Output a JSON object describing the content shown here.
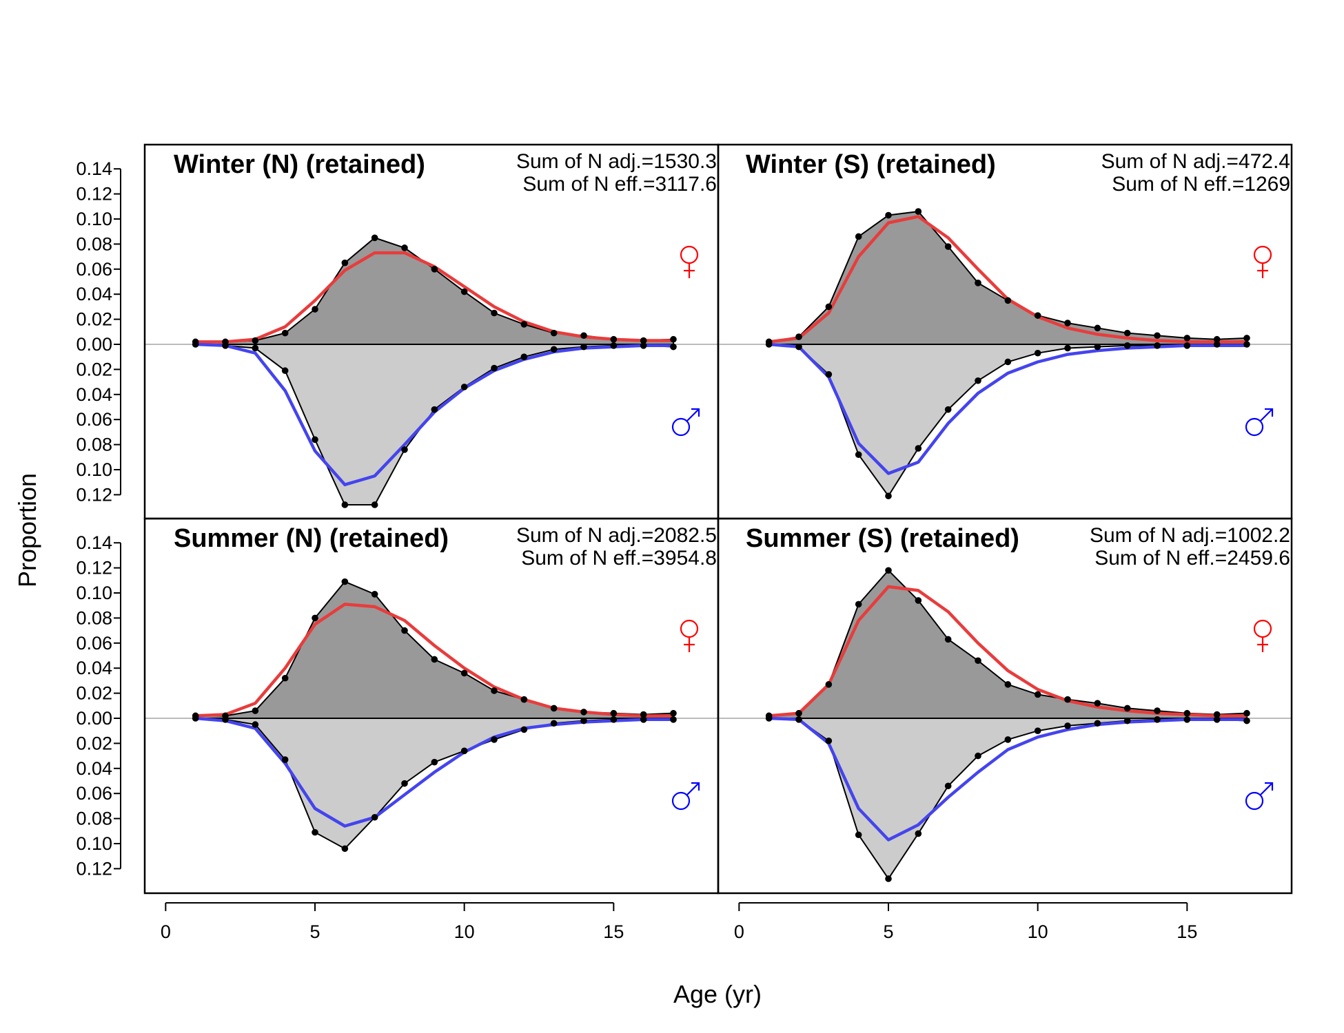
{
  "figure": {
    "xlabel": "Age (yr)",
    "ylabel": "Proportion"
  },
  "colors": {
    "female_obs_fill": "#999999",
    "male_obs_fill": "#cccccc",
    "female_expected": "#e83c3c",
    "male_expected": "#4444ee",
    "female_symbol": "#ff0000",
    "male_symbol": "#0000ff",
    "zero_line": "#bbbbbb"
  },
  "icons": {
    "female": "female-sign-icon",
    "male": "male-sign-icon"
  },
  "chart_data": [
    {
      "type": "area",
      "title": "Winter (N) (retained)",
      "stats": [
        "Sum of N adj.=1530.3",
        "Sum of N eff.=3117.6"
      ],
      "x": [
        1,
        2,
        3,
        4,
        5,
        6,
        7,
        8,
        9,
        10,
        11,
        12,
        13,
        14,
        15,
        16,
        17
      ],
      "x_ticks": [
        0,
        5,
        10,
        15
      ],
      "y_ticks_top": [
        "0.14",
        "0.12",
        "0.10",
        "0.08",
        "0.06",
        "0.04",
        "0.02",
        "0.00"
      ],
      "y_ticks_bottom": [
        "0.02",
        "0.04",
        "0.06",
        "0.08",
        "0.10",
        "0.12"
      ],
      "series": [
        {
          "sex": "female",
          "role": "observed",
          "values": [
            0.002,
            0.002,
            0.003,
            0.009,
            0.028,
            0.065,
            0.085,
            0.077,
            0.06,
            0.042,
            0.025,
            0.016,
            0.009,
            0.007,
            0.004,
            0.003,
            0.004
          ]
        },
        {
          "sex": "female",
          "role": "expected",
          "values": [
            0.002,
            0.002,
            0.004,
            0.014,
            0.035,
            0.059,
            0.073,
            0.073,
            0.062,
            0.046,
            0.03,
            0.018,
            0.01,
            0.006,
            0.004,
            0.003,
            0.003
          ]
        },
        {
          "sex": "male",
          "role": "observed",
          "values": [
            0.0,
            0.001,
            0.003,
            0.021,
            0.076,
            0.128,
            0.128,
            0.084,
            0.052,
            0.034,
            0.019,
            0.01,
            0.004,
            0.002,
            0.001,
            0.001,
            0.002
          ]
        },
        {
          "sex": "male",
          "role": "expected",
          "values": [
            0.0,
            0.001,
            0.007,
            0.037,
            0.085,
            0.112,
            0.105,
            0.08,
            0.054,
            0.035,
            0.021,
            0.012,
            0.006,
            0.003,
            0.002,
            0.001,
            0.001
          ]
        }
      ]
    },
    {
      "type": "area",
      "title": "Winter (S) (retained)",
      "stats": [
        "Sum of N adj.=472.4",
        "Sum of N eff.=1269"
      ],
      "x": [
        1,
        2,
        3,
        4,
        5,
        6,
        7,
        8,
        9,
        10,
        11,
        12,
        13,
        14,
        15,
        16,
        17
      ],
      "x_ticks": [
        0,
        5,
        10,
        15
      ],
      "y_ticks_top": [],
      "y_ticks_bottom": [],
      "series": [
        {
          "sex": "female",
          "role": "observed",
          "values": [
            0.002,
            0.006,
            0.03,
            0.086,
            0.103,
            0.106,
            0.078,
            0.049,
            0.035,
            0.023,
            0.017,
            0.013,
            0.009,
            0.007,
            0.005,
            0.004,
            0.005
          ]
        },
        {
          "sex": "female",
          "role": "expected",
          "values": [
            0.002,
            0.005,
            0.025,
            0.07,
            0.097,
            0.102,
            0.085,
            0.06,
            0.036,
            0.022,
            0.013,
            0.008,
            0.005,
            0.003,
            0.002,
            0.002,
            0.002
          ]
        },
        {
          "sex": "male",
          "role": "observed",
          "values": [
            0.0,
            0.002,
            0.024,
            0.088,
            0.121,
            0.083,
            0.052,
            0.029,
            0.014,
            0.007,
            0.003,
            0.002,
            0.001,
            0.001,
            0.001,
            0.0,
            0.0
          ]
        },
        {
          "sex": "male",
          "role": "expected",
          "values": [
            0.0,
            0.002,
            0.026,
            0.079,
            0.103,
            0.094,
            0.063,
            0.039,
            0.023,
            0.014,
            0.008,
            0.005,
            0.003,
            0.002,
            0.001,
            0.001,
            0.001
          ]
        }
      ]
    },
    {
      "type": "area",
      "title": "Summer (N) (retained)",
      "stats": [
        "Sum of N adj.=2082.5",
        "Sum of N eff.=3954.8"
      ],
      "x": [
        1,
        2,
        3,
        4,
        5,
        6,
        7,
        8,
        9,
        10,
        11,
        12,
        13,
        14,
        15,
        16,
        17
      ],
      "x_ticks": [
        0,
        5,
        10,
        15
      ],
      "y_ticks_top": [
        "0.14",
        "0.12",
        "0.10",
        "0.08",
        "0.06",
        "0.04",
        "0.02",
        "0.00"
      ],
      "y_ticks_bottom": [
        "0.02",
        "0.04",
        "0.06",
        "0.08",
        "0.10",
        "0.12"
      ],
      "series": [
        {
          "sex": "female",
          "role": "observed",
          "values": [
            0.002,
            0.002,
            0.006,
            0.032,
            0.08,
            0.109,
            0.099,
            0.07,
            0.047,
            0.036,
            0.022,
            0.015,
            0.008,
            0.005,
            0.004,
            0.003,
            0.004
          ]
        },
        {
          "sex": "female",
          "role": "expected",
          "values": [
            0.002,
            0.003,
            0.012,
            0.04,
            0.075,
            0.091,
            0.089,
            0.078,
            0.058,
            0.04,
            0.025,
            0.015,
            0.008,
            0.005,
            0.003,
            0.002,
            0.002
          ]
        },
        {
          "sex": "male",
          "role": "observed",
          "values": [
            0.0,
            0.001,
            0.005,
            0.033,
            0.091,
            0.104,
            0.079,
            0.052,
            0.035,
            0.026,
            0.017,
            0.009,
            0.004,
            0.002,
            0.001,
            0.001,
            0.001
          ]
        },
        {
          "sex": "male",
          "role": "expected",
          "values": [
            0.0,
            0.002,
            0.008,
            0.036,
            0.072,
            0.086,
            0.079,
            0.061,
            0.043,
            0.027,
            0.015,
            0.008,
            0.005,
            0.003,
            0.002,
            0.001,
            0.001
          ]
        }
      ]
    },
    {
      "type": "area",
      "title": "Summer (S) (retained)",
      "stats": [
        "Sum of N adj.=1002.2",
        "Sum of N eff.=2459.6"
      ],
      "x": [
        1,
        2,
        3,
        4,
        5,
        6,
        7,
        8,
        9,
        10,
        11,
        12,
        13,
        14,
        15,
        16,
        17
      ],
      "x_ticks": [
        0,
        5,
        10,
        15
      ],
      "y_ticks_top": [],
      "y_ticks_bottom": [],
      "series": [
        {
          "sex": "female",
          "role": "observed",
          "values": [
            0.002,
            0.004,
            0.027,
            0.091,
            0.118,
            0.094,
            0.063,
            0.046,
            0.027,
            0.019,
            0.015,
            0.012,
            0.008,
            0.006,
            0.004,
            0.003,
            0.004
          ]
        },
        {
          "sex": "female",
          "role": "expected",
          "values": [
            0.002,
            0.004,
            0.027,
            0.078,
            0.105,
            0.102,
            0.085,
            0.06,
            0.038,
            0.023,
            0.014,
            0.009,
            0.006,
            0.004,
            0.003,
            0.002,
            0.002
          ]
        },
        {
          "sex": "male",
          "role": "observed",
          "values": [
            0.0,
            0.001,
            0.018,
            0.093,
            0.128,
            0.092,
            0.054,
            0.03,
            0.017,
            0.01,
            0.006,
            0.004,
            0.002,
            0.001,
            0.001,
            0.001,
            0.002
          ]
        },
        {
          "sex": "male",
          "role": "expected",
          "values": [
            0.0,
            0.001,
            0.02,
            0.072,
            0.097,
            0.085,
            0.063,
            0.043,
            0.025,
            0.015,
            0.009,
            0.005,
            0.003,
            0.002,
            0.001,
            0.001,
            0.001
          ]
        }
      ]
    }
  ]
}
